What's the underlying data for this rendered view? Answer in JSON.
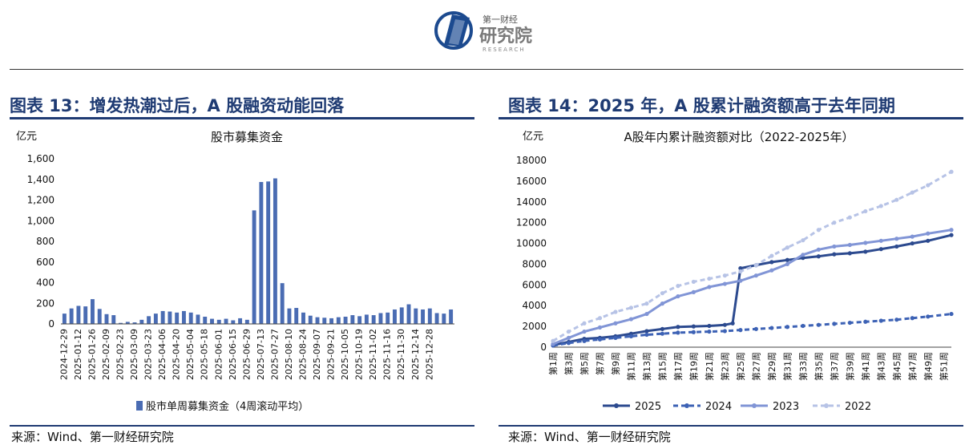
{
  "logo": {
    "cn_small": "第一财经",
    "cn_big": "研究院",
    "en": "RESEARCH",
    "colors": [
      "#1c4a8f",
      "#8a8a8a"
    ]
  },
  "left": {
    "figure_title": "图表 13：增发热潮过后，A 股融资动能回落",
    "source": "来源：Wind、第一财经研究院",
    "chart_data": {
      "type": "bar",
      "title": "股市募集资金",
      "yunit": "亿元",
      "ylim": [
        0,
        1600
      ],
      "yticks": [
        0,
        200,
        400,
        600,
        800,
        1000,
        1200,
        1400,
        1600
      ],
      "ytick_labels": [
        "0",
        "200",
        "400",
        "600",
        "800",
        "1,000",
        "1,200",
        "1,400",
        "1,600"
      ],
      "xtick_labels": [
        "2024-12-29",
        "2025-01-12",
        "2025-01-26",
        "2025-02-09",
        "2025-02-23",
        "2025-03-09",
        "2025-03-23",
        "2025-04-06",
        "2025-04-20",
        "2025-05-04",
        "2025-05-18",
        "2025-06-01",
        "2025-06-15",
        "2025-06-29",
        "2025-07-13",
        "2025-07-27",
        "2025-08-10",
        "2025-08-24",
        "2025-09-07",
        "2025-09-21",
        "2025-10-05",
        "2025-10-19",
        "2025-11-02",
        "2025-11-16",
        "2025-11-30",
        "2025-12-14",
        "2025-12-28"
      ],
      "color": "#4a6cb3",
      "series": [
        {
          "name": "股市单周募集资金（4周滚动平均）",
          "values": [
            100,
            150,
            175,
            170,
            240,
            145,
            95,
            85,
            10,
            20,
            15,
            40,
            75,
            100,
            125,
            120,
            110,
            125,
            110,
            90,
            70,
            50,
            40,
            50,
            35,
            55,
            40,
            1100,
            1375,
            1380,
            1410,
            395,
            150,
            155,
            110,
            80,
            65,
            60,
            55,
            65,
            70,
            85,
            75,
            90,
            85,
            105,
            110,
            140,
            160,
            190,
            150,
            140,
            150,
            105,
            100,
            140
          ]
        }
      ]
    }
  },
  "right": {
    "figure_title": "图表 14：2025 年，A 股累计融资额高于去年同期",
    "source": "来源：Wind、第一财经研究院",
    "chart_data": {
      "type": "line",
      "title": "A股年内累计融资额对比（2022-2025年）",
      "yunit": "亿元",
      "ylim": [
        0,
        18000
      ],
      "yticks": [
        0,
        2000,
        4000,
        6000,
        8000,
        10000,
        12000,
        14000,
        16000,
        18000
      ],
      "x_start": 1,
      "x_end": 52,
      "xtick_labels": [
        "第1周",
        "第3周",
        "第5周",
        "第7周",
        "第9周",
        "第11周",
        "第13周",
        "第15周",
        "第17周",
        "第19周",
        "第21周",
        "第23周",
        "第25周",
        "第27周",
        "第29周",
        "第31周",
        "第33周",
        "第35周",
        "第37周",
        "第39周",
        "第41周",
        "第43周",
        "第45周",
        "第47周",
        "第49周",
        "第51周"
      ],
      "series": [
        {
          "name": "2025",
          "color": "#2c4a8f",
          "style": "solid",
          "points": [
            [
              1,
              200
            ],
            [
              3,
              500
            ],
            [
              5,
              800
            ],
            [
              7,
              900
            ],
            [
              9,
              1050
            ],
            [
              11,
              1300
            ],
            [
              13,
              1550
            ],
            [
              15,
              1750
            ],
            [
              17,
              1950
            ],
            [
              19,
              2000
            ],
            [
              21,
              2050
            ],
            [
              23,
              2150
            ],
            [
              24,
              2300
            ],
            [
              25,
              7600
            ],
            [
              27,
              7900
            ],
            [
              29,
              8200
            ],
            [
              31,
              8400
            ],
            [
              33,
              8600
            ],
            [
              35,
              8750
            ],
            [
              37,
              8950
            ],
            [
              39,
              9050
            ],
            [
              41,
              9200
            ],
            [
              43,
              9450
            ],
            [
              45,
              9700
            ],
            [
              47,
              10000
            ],
            [
              49,
              10250
            ],
            [
              52,
              10800
            ]
          ]
        },
        {
          "name": "2024",
          "color": "#3d62b5",
          "style": "dashed",
          "points": [
            [
              1,
              150
            ],
            [
              3,
              400
            ],
            [
              5,
              600
            ],
            [
              7,
              750
            ],
            [
              9,
              900
            ],
            [
              11,
              1050
            ],
            [
              13,
              1200
            ],
            [
              15,
              1300
            ],
            [
              17,
              1400
            ],
            [
              19,
              1450
            ],
            [
              21,
              1500
            ],
            [
              23,
              1550
            ],
            [
              25,
              1650
            ],
            [
              27,
              1750
            ],
            [
              29,
              1850
            ],
            [
              31,
              1950
            ],
            [
              33,
              2050
            ],
            [
              35,
              2150
            ],
            [
              37,
              2250
            ],
            [
              39,
              2350
            ],
            [
              41,
              2450
            ],
            [
              43,
              2550
            ],
            [
              45,
              2650
            ],
            [
              47,
              2800
            ],
            [
              49,
              2950
            ],
            [
              52,
              3200
            ]
          ]
        },
        {
          "name": "2023",
          "color": "#8195d6",
          "style": "solid-marker",
          "points": [
            [
              1,
              300
            ],
            [
              3,
              900
            ],
            [
              5,
              1500
            ],
            [
              7,
              1900
            ],
            [
              9,
              2300
            ],
            [
              11,
              2700
            ],
            [
              13,
              3200
            ],
            [
              15,
              4200
            ],
            [
              17,
              4900
            ],
            [
              19,
              5300
            ],
            [
              21,
              5800
            ],
            [
              23,
              6100
            ],
            [
              25,
              6400
            ],
            [
              27,
              6900
            ],
            [
              29,
              7400
            ],
            [
              31,
              8000
            ],
            [
              33,
              8900
            ],
            [
              35,
              9400
            ],
            [
              37,
              9700
            ],
            [
              39,
              9850
            ],
            [
              41,
              10050
            ],
            [
              43,
              10250
            ],
            [
              45,
              10450
            ],
            [
              47,
              10650
            ],
            [
              49,
              10950
            ],
            [
              52,
              11300
            ]
          ]
        },
        {
          "name": "2022",
          "color": "#b7c3e6",
          "style": "dashed-marker",
          "points": [
            [
              1,
              600
            ],
            [
              3,
              1500
            ],
            [
              5,
              2300
            ],
            [
              7,
              2800
            ],
            [
              9,
              3400
            ],
            [
              11,
              3800
            ],
            [
              13,
              4200
            ],
            [
              15,
              5200
            ],
            [
              17,
              5900
            ],
            [
              19,
              6300
            ],
            [
              21,
              6600
            ],
            [
              23,
              6900
            ],
            [
              25,
              7300
            ],
            [
              27,
              7900
            ],
            [
              29,
              8800
            ],
            [
              31,
              9600
            ],
            [
              33,
              10300
            ],
            [
              35,
              11300
            ],
            [
              37,
              12000
            ],
            [
              39,
              12500
            ],
            [
              41,
              13100
            ],
            [
              43,
              13600
            ],
            [
              45,
              14200
            ],
            [
              47,
              14900
            ],
            [
              49,
              15600
            ],
            [
              52,
              16900
            ]
          ]
        }
      ]
    }
  }
}
